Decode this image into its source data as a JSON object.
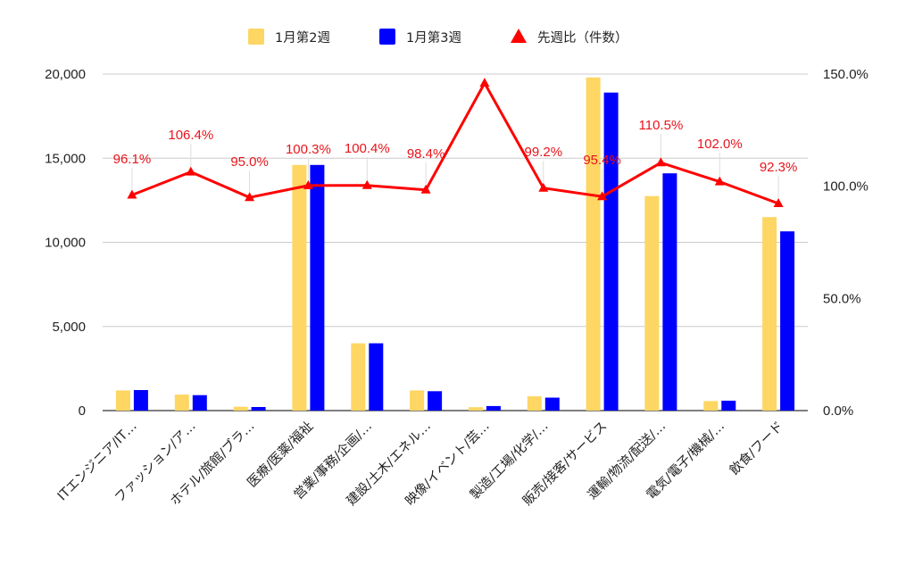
{
  "chart_data": {
    "type": "bar",
    "categories": [
      "ITエンジニア/IT…",
      "ファッション/ア…",
      "ホテル/旅館/ブラ…",
      "医療/医薬/福祉",
      "営業/事務/企画/…",
      "建設/土木/エネル…",
      "映像/イベント/芸…",
      "製造/工場/化学/…",
      "販売/接客/サービス",
      "運輸/物流/配送/…",
      "電気/電子/機械/…",
      "飲食/フード"
    ],
    "series": [
      {
        "name": "1月第2週",
        "axis": "left",
        "kind": "bar",
        "color": "#fdd663",
        "values": [
          1200,
          950,
          230,
          14600,
          4000,
          1200,
          200,
          850,
          19800,
          12750,
          570,
          11500
        ]
      },
      {
        "name": "1月第3週",
        "axis": "left",
        "kind": "bar",
        "color": "#0000ff",
        "values": [
          1220,
          920,
          210,
          14600,
          4000,
          1150,
          270,
          770,
          18900,
          14100,
          590,
          10650
        ]
      },
      {
        "name": "先週比（件数）",
        "axis": "right",
        "kind": "line",
        "color": "#ff0000",
        "values": [
          96.1,
          106.4,
          95.0,
          100.3,
          100.4,
          98.4,
          146.0,
          99.2,
          95.4,
          110.5,
          102.0,
          92.3
        ],
        "labels": [
          "96.1%",
          "106.4%",
          "95.0%",
          "100.3%",
          "100.4%",
          "98.4%",
          "",
          "99.2%",
          "95.4%",
          "110.5%",
          "102.0%",
          "92.3%"
        ]
      }
    ],
    "left_axis": {
      "ticks": [
        "0",
        "5,000",
        "10,000",
        "15,000",
        "20,000"
      ],
      "range": [
        0,
        20000
      ]
    },
    "right_axis": {
      "ticks": [
        "0.0%",
        "50.0%",
        "100.0%",
        "150.0%"
      ],
      "range": [
        0,
        150
      ]
    },
    "grid": true,
    "legend_position": "top"
  }
}
